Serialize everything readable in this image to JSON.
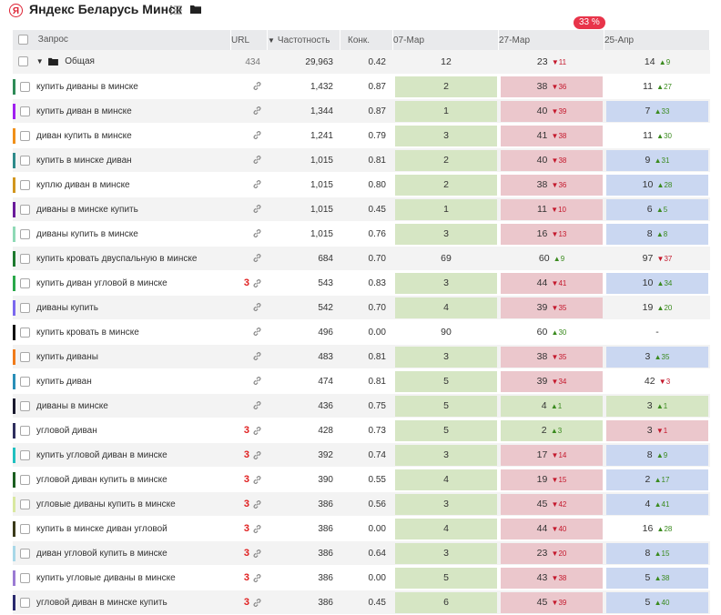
{
  "header": {
    "logo": "Я",
    "project_title": "Яндекс Беларусь Минск",
    "list_icon": "list-icon",
    "folder_icon": "folder-icon"
  },
  "badge": "33 %",
  "columns": {
    "query": "Запрос",
    "url": "URL",
    "frequency": "Частотность",
    "competition": "Конк.",
    "dates": [
      "07-Мар",
      "27-Мар",
      "25-Апр"
    ]
  },
  "group": {
    "name": "Общая",
    "url": "434",
    "frequency": "29,963",
    "competition": "0.42",
    "positions": [
      {
        "v": "12",
        "d": "",
        "dir": ""
      },
      {
        "v": "23",
        "d": "11",
        "dir": "down"
      },
      {
        "v": "14",
        "d": "9",
        "dir": "up"
      }
    ]
  },
  "rows": [
    {
      "color": "#2e8b57",
      "query": "купить диваны в минске",
      "url": "",
      "freq": "1,432",
      "comp": "0.87",
      "p": [
        {
          "v": "2",
          "c": "g"
        },
        {
          "v": "38",
          "d": "36",
          "dir": "down",
          "c": "r"
        },
        {
          "v": "11",
          "d": "27",
          "dir": "up",
          "c": ""
        }
      ]
    },
    {
      "color": "#a020f0",
      "query": "купить диван в минске",
      "url": "",
      "freq": "1,344",
      "comp": "0.87",
      "p": [
        {
          "v": "1",
          "c": "g"
        },
        {
          "v": "40",
          "d": "39",
          "dir": "down",
          "c": "r"
        },
        {
          "v": "7",
          "d": "33",
          "dir": "up",
          "c": "b"
        }
      ]
    },
    {
      "color": "#f0901a",
      "query": "диван купить в минске",
      "url": "",
      "freq": "1,241",
      "comp": "0.79",
      "p": [
        {
          "v": "3",
          "c": "g"
        },
        {
          "v": "41",
          "d": "38",
          "dir": "down",
          "c": "r"
        },
        {
          "v": "11",
          "d": "30",
          "dir": "up",
          "c": ""
        }
      ]
    },
    {
      "color": "#2e8b8b",
      "query": "купить в минске диван",
      "url": "",
      "freq": "1,015",
      "comp": "0.81",
      "p": [
        {
          "v": "2",
          "c": "g"
        },
        {
          "v": "40",
          "d": "38",
          "dir": "down",
          "c": "r"
        },
        {
          "v": "9",
          "d": "31",
          "dir": "up",
          "c": "b"
        }
      ]
    },
    {
      "color": "#d2961e",
      "query": "куплю диван в минске",
      "url": "",
      "freq": "1,015",
      "comp": "0.80",
      "p": [
        {
          "v": "2",
          "c": "g"
        },
        {
          "v": "38",
          "d": "36",
          "dir": "down",
          "c": "r"
        },
        {
          "v": "10",
          "d": "28",
          "dir": "up",
          "c": "b"
        }
      ]
    },
    {
      "color": "#6a1b9a",
      "query": "диваны в минске купить",
      "url": "",
      "freq": "1,015",
      "comp": "0.45",
      "p": [
        {
          "v": "1",
          "c": "g"
        },
        {
          "v": "11",
          "d": "10",
          "dir": "down",
          "c": "r"
        },
        {
          "v": "6",
          "d": "5",
          "dir": "up",
          "c": "b"
        }
      ]
    },
    {
      "color": "#8fd9b6",
      "query": "диваны купить в минске",
      "url": "",
      "freq": "1,015",
      "comp": "0.76",
      "p": [
        {
          "v": "3",
          "c": "g"
        },
        {
          "v": "16",
          "d": "13",
          "dir": "down",
          "c": "r"
        },
        {
          "v": "8",
          "d": "8",
          "dir": "up",
          "c": "b"
        }
      ]
    },
    {
      "color": "#1e7a2e",
      "query": "купить кровать двуспальную в минске",
      "url": "",
      "freq": "684",
      "comp": "0.70",
      "p": [
        {
          "v": "69",
          "c": ""
        },
        {
          "v": "60",
          "d": "9",
          "dir": "up",
          "c": ""
        },
        {
          "v": "97",
          "d": "37",
          "dir": "down",
          "c": ""
        }
      ]
    },
    {
      "color": "#2aa84a",
      "query": "купить диван угловой в минске",
      "url": "3",
      "freq": "543",
      "comp": "0.83",
      "p": [
        {
          "v": "3",
          "c": "g"
        },
        {
          "v": "44",
          "d": "41",
          "dir": "down",
          "c": "r"
        },
        {
          "v": "10",
          "d": "34",
          "dir": "up",
          "c": "b"
        }
      ]
    },
    {
      "color": "#7b68ee",
      "query": "диваны купить",
      "url": "",
      "freq": "542",
      "comp": "0.70",
      "p": [
        {
          "v": "4",
          "c": "g"
        },
        {
          "v": "39",
          "d": "35",
          "dir": "down",
          "c": "r"
        },
        {
          "v": "19",
          "d": "20",
          "dir": "up",
          "c": ""
        }
      ]
    },
    {
      "color": "#111111",
      "query": "купить кровать в минске",
      "url": "",
      "freq": "496",
      "comp": "0.00",
      "p": [
        {
          "v": "90",
          "c": ""
        },
        {
          "v": "60",
          "d": "30",
          "dir": "up",
          "c": ""
        },
        {
          "v": "-",
          "c": ""
        }
      ]
    },
    {
      "color": "#f07b1a",
      "query": "купить диваны",
      "url": "",
      "freq": "483",
      "comp": "0.81",
      "p": [
        {
          "v": "3",
          "c": "g"
        },
        {
          "v": "38",
          "d": "35",
          "dir": "down",
          "c": "r"
        },
        {
          "v": "3",
          "d": "35",
          "dir": "up",
          "c": "b"
        }
      ]
    },
    {
      "color": "#2a8fb8",
      "query": "купить диван",
      "url": "",
      "freq": "474",
      "comp": "0.81",
      "p": [
        {
          "v": "5",
          "c": "g"
        },
        {
          "v": "39",
          "d": "34",
          "dir": "down",
          "c": "r"
        },
        {
          "v": "42",
          "d": "3",
          "dir": "down",
          "c": ""
        }
      ]
    },
    {
      "color": "#1a1a2e",
      "query": "диваны в минске",
      "url": "",
      "freq": "436",
      "comp": "0.75",
      "p": [
        {
          "v": "5",
          "c": "g"
        },
        {
          "v": "4",
          "d": "1",
          "dir": "up",
          "c": "g"
        },
        {
          "v": "3",
          "d": "1",
          "dir": "up",
          "c": "g"
        }
      ]
    },
    {
      "color": "#2f2f5e",
      "query": "угловой диван",
      "url": "3",
      "freq": "428",
      "comp": "0.73",
      "p": [
        {
          "v": "5",
          "c": "g"
        },
        {
          "v": "2",
          "d": "3",
          "dir": "up",
          "c": "g"
        },
        {
          "v": "3",
          "d": "1",
          "dir": "down",
          "c": "r"
        }
      ]
    },
    {
      "color": "#20c0c0",
      "query": "купить угловой диван в минске",
      "url": "3",
      "freq": "392",
      "comp": "0.74",
      "p": [
        {
          "v": "3",
          "c": "g"
        },
        {
          "v": "17",
          "d": "14",
          "dir": "down",
          "c": "r"
        },
        {
          "v": "8",
          "d": "9",
          "dir": "up",
          "c": "b"
        }
      ]
    },
    {
      "color": "#1b5e20",
      "query": "угловой диван купить в минске",
      "url": "3",
      "freq": "390",
      "comp": "0.55",
      "p": [
        {
          "v": "4",
          "c": "g"
        },
        {
          "v": "19",
          "d": "15",
          "dir": "down",
          "c": "r"
        },
        {
          "v": "2",
          "d": "17",
          "dir": "up",
          "c": "b"
        }
      ]
    },
    {
      "color": "#d9e8a0",
      "query": "угловые диваны купить в минске",
      "url": "3",
      "freq": "386",
      "comp": "0.56",
      "p": [
        {
          "v": "3",
          "c": "g"
        },
        {
          "v": "45",
          "d": "42",
          "dir": "down",
          "c": "r"
        },
        {
          "v": "4",
          "d": "41",
          "dir": "up",
          "c": "b"
        }
      ]
    },
    {
      "color": "#3a3a1a",
      "query": "купить в минске диван угловой",
      "url": "3",
      "freq": "386",
      "comp": "0.00",
      "p": [
        {
          "v": "4",
          "c": "g"
        },
        {
          "v": "44",
          "d": "40",
          "dir": "down",
          "c": "r"
        },
        {
          "v": "16",
          "d": "28",
          "dir": "up",
          "c": ""
        }
      ]
    },
    {
      "color": "#a8d8e8",
      "query": "диван угловой купить в минске",
      "url": "3",
      "freq": "386",
      "comp": "0.64",
      "p": [
        {
          "v": "3",
          "c": "g"
        },
        {
          "v": "23",
          "d": "20",
          "dir": "down",
          "c": "r"
        },
        {
          "v": "8",
          "d": "15",
          "dir": "up",
          "c": "b"
        }
      ]
    },
    {
      "color": "#9b7bd4",
      "query": "купить угловые диваны в минске",
      "url": "3",
      "freq": "386",
      "comp": "0.00",
      "p": [
        {
          "v": "5",
          "c": "g"
        },
        {
          "v": "43",
          "d": "38",
          "dir": "down",
          "c": "r"
        },
        {
          "v": "5",
          "d": "38",
          "dir": "up",
          "c": "b"
        }
      ]
    },
    {
      "color": "#2a2a6e",
      "query": "угловой диван в минске купить",
      "url": "3",
      "freq": "386",
      "comp": "0.45",
      "p": [
        {
          "v": "6",
          "c": "g"
        },
        {
          "v": "45",
          "d": "39",
          "dir": "down",
          "c": "r"
        },
        {
          "v": "5",
          "d": "40",
          "dir": "up",
          "c": "b"
        }
      ]
    }
  ]
}
